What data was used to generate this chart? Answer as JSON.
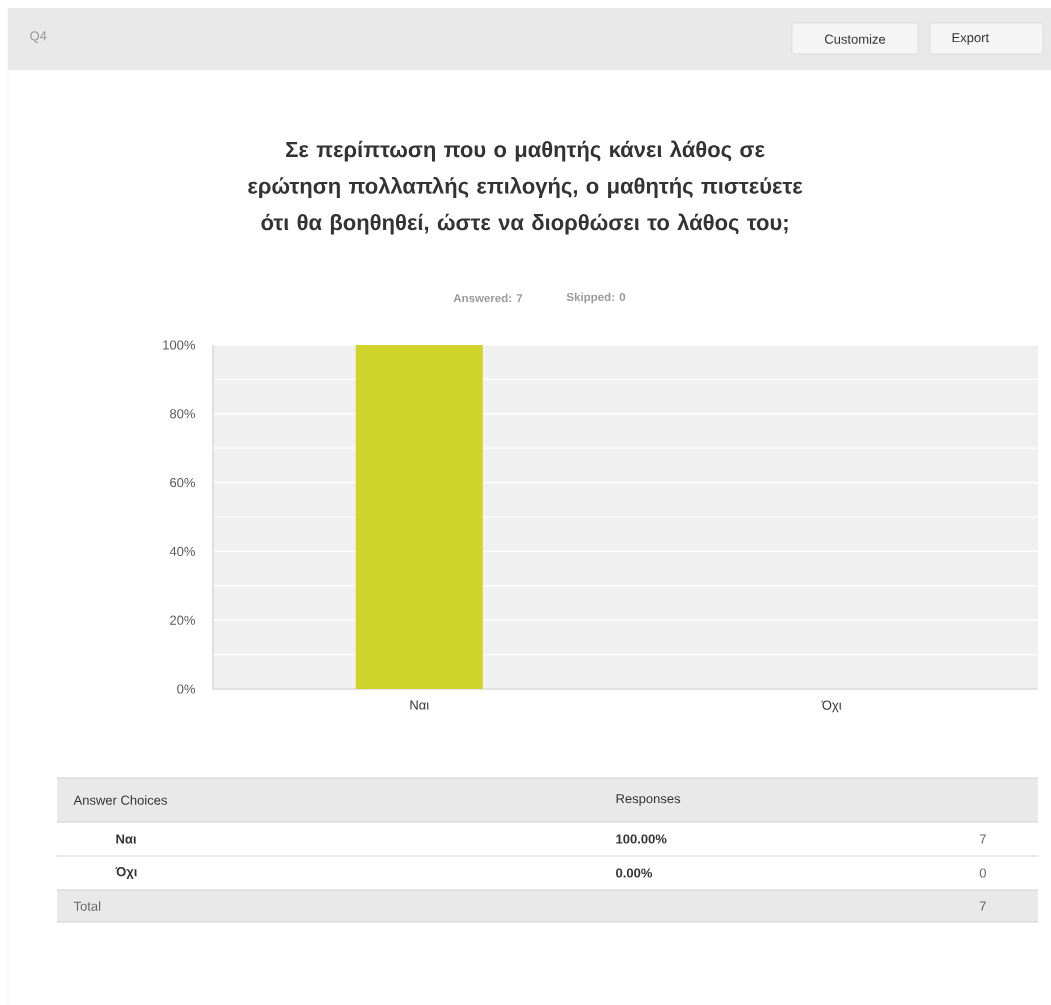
{
  "chart_data": {
    "type": "bar",
    "title": "Σε περίπτωση που ο μαθητής κάνει λάθος σε ερώτηση πολλαπλής επιλογής, ο μαθητής πιστεύετε ότι θα βοηθηθεί, ώστε να διορθώσει το λάθος του;",
    "categories": [
      "Ναι",
      "Όχι"
    ],
    "values": [
      100,
      0
    ],
    "color": "#d0d42a",
    "ylim": [
      0,
      100
    ],
    "yticks": [
      {
        "value": 0,
        "label": "0%"
      },
      {
        "value": 20,
        "label": "20%"
      },
      {
        "value": 40,
        "label": "40%"
      },
      {
        "value": 60,
        "label": "60%"
      },
      {
        "value": 80,
        "label": "80%"
      },
      {
        "value": 100,
        "label": "100%"
      }
    ],
    "grid": "y",
    "annotations": [
      "Q4",
      "Customize",
      "Export",
      "Answered: 7",
      "Skipped: 0",
      "Answer Choices",
      "Responses",
      "7",
      "0",
      "Total",
      "7",
      "100.00%",
      "0.00%"
    ]
  }
}
